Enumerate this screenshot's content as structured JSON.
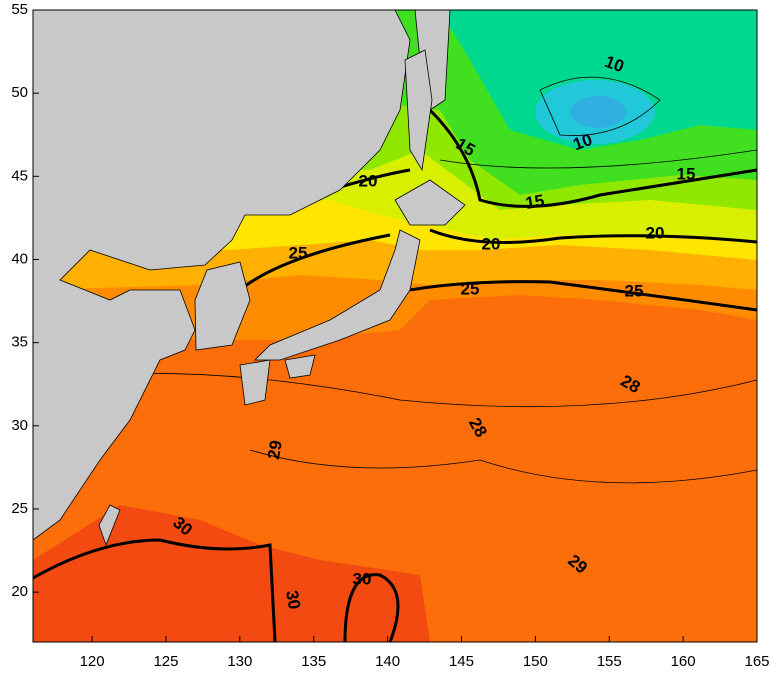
{
  "map": {
    "xlim": [
      116,
      165
    ],
    "ylim": [
      17,
      55
    ],
    "xticks": [
      120,
      125,
      130,
      135,
      140,
      145,
      150,
      155,
      160,
      165
    ],
    "yticks": [
      20,
      25,
      30,
      35,
      40,
      45,
      50,
      55
    ],
    "contour_labels": [
      10,
      10,
      15,
      15,
      15,
      20,
      20,
      20,
      25,
      25,
      25,
      28,
      28,
      29,
      29,
      30,
      30,
      30
    ]
  }
}
